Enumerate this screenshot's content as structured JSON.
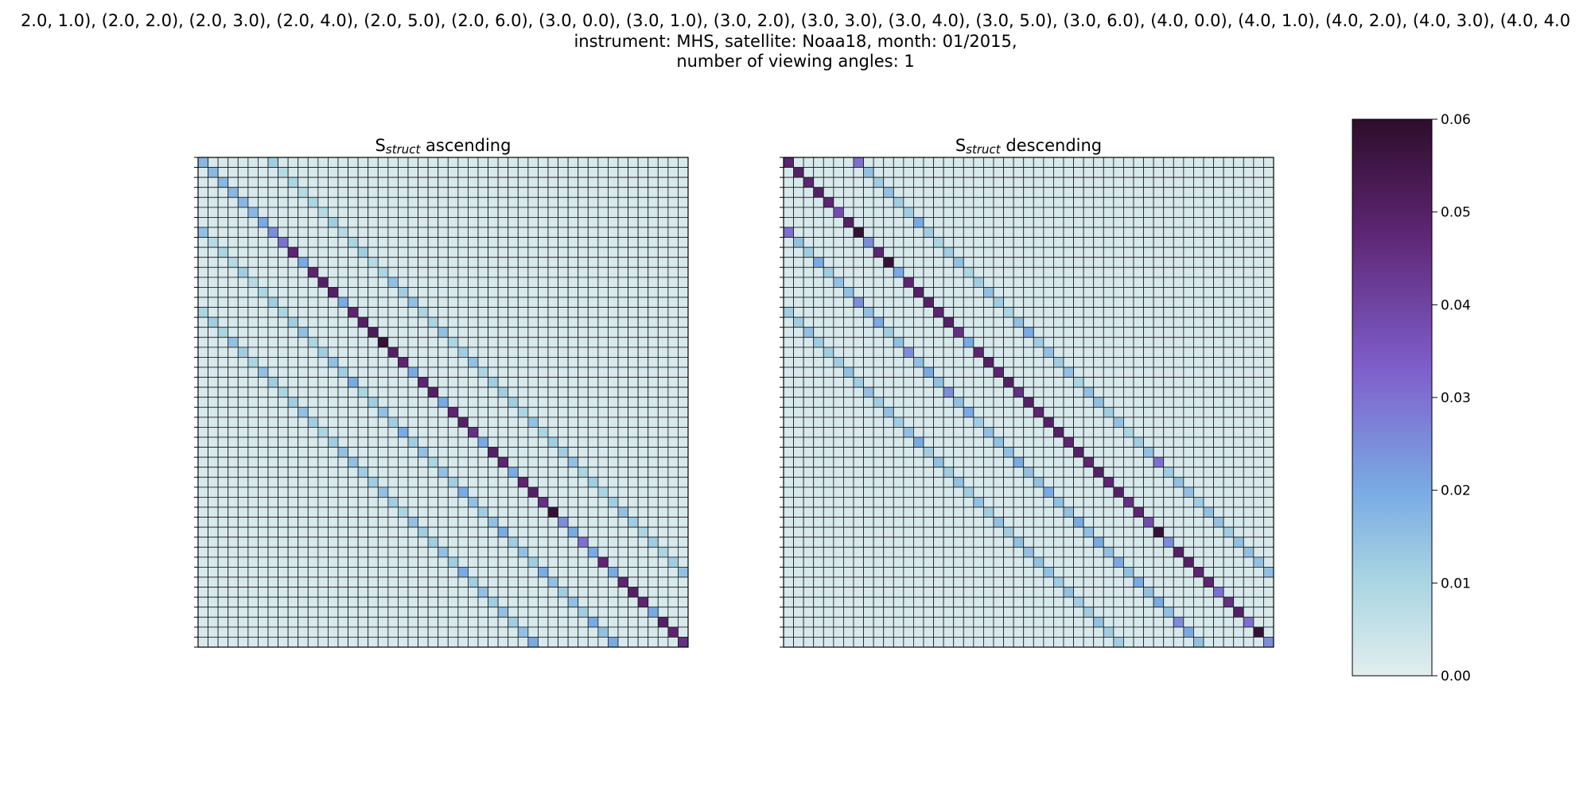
{
  "figure": {
    "title_line_1": "2.0, 1.0), (2.0, 2.0), (2.0, 3.0), (2.0, 4.0), (2.0, 5.0), (2.0, 6.0), (3.0, 0.0), (3.0, 1.0), (3.0, 2.0), (3.0, 3.0), (3.0, 4.0), (3.0, 5.0), (3.0, 6.0), (4.0, 0.0), (4.0, 1.0), (4.0, 2.0), (4.0, 3.0), (4.0, 4.0",
    "title_line_2": "instrument: MHS, satellite: Noaa18, month: 01/2015,",
    "title_line_3": "number of viewing angles: 1"
  },
  "colormap": {
    "low": "#e2eeee",
    "light_blue": "#a9d5e2",
    "blue": "#7aabe4",
    "purple": "#7f5fcc",
    "magenta": "#5d2572",
    "high": "#2e0d2a"
  },
  "chart_data": [
    {
      "type": "heatmap",
      "title_main": "S",
      "title_sub": "struct",
      "title_rest": " ascending",
      "size": 49,
      "vmin": 0,
      "vmax": 0.06,
      "background_value": 0.002,
      "diagonals": [
        {
          "offset": 0,
          "values": [
            0.017,
            0.017,
            0.017,
            0.017,
            0.017,
            0.017,
            0.02,
            0.025,
            0.03,
            0.048,
            0.02,
            0.048,
            0.05,
            0.05,
            0.02,
            0.048,
            0.05,
            0.052,
            0.058,
            0.05,
            0.048,
            0.02,
            0.048,
            0.05,
            0.02,
            0.048,
            0.05,
            0.045,
            0.02,
            0.05,
            0.048,
            0.02,
            0.048,
            0.05,
            0.045,
            0.058,
            0.025,
            0.02,
            0.03,
            0.02,
            0.048,
            0.02,
            0.048,
            0.05,
            0.048,
            0.02,
            0.05,
            0.048,
            0.045
          ]
        },
        {
          "offset": 7,
          "values": [
            0.012,
            0.008,
            0.01,
            0.008,
            0.01,
            0.008,
            0.012,
            0.008,
            0.01,
            0.012,
            0.008,
            0.01,
            0.015,
            0.012,
            0.015,
            0.01,
            0.01,
            0.015,
            0.01,
            0.012,
            0.015,
            0.01,
            0.012,
            0.012,
            0.012,
            0.01,
            0.015,
            0.01,
            0.012,
            0.012,
            0.015,
            0.01,
            0.012,
            0.01,
            0.012,
            0.015,
            0.012,
            0.01,
            0.012,
            0.01,
            0.012,
            0.015
          ]
        },
        {
          "offset": -7,
          "values": [
            0.015,
            0.008,
            0.01,
            0.008,
            0.012,
            0.008,
            0.01,
            0.012,
            0.01,
            0.012,
            0.015,
            0.01,
            0.012,
            0.015,
            0.012,
            0.02,
            0.01,
            0.012,
            0.015,
            0.012,
            0.02,
            0.012,
            0.015,
            0.01,
            0.015,
            0.012,
            0.02,
            0.015,
            0.012,
            0.015,
            0.02,
            0.012,
            0.015,
            0.012,
            0.02,
            0.015,
            0.012,
            0.015,
            0.012,
            0.02,
            0.015,
            0.02
          ]
        },
        {
          "offset": -15,
          "values": [
            0.01,
            0.012,
            0.01,
            0.015,
            0.012,
            0.01,
            0.015,
            0.012,
            0.01,
            0.012,
            0.015,
            0.012,
            0.01,
            0.012,
            0.015,
            0.015,
            0.012,
            0.012,
            0.015,
            0.012,
            0.01,
            0.015,
            0.012,
            0.012,
            0.015,
            0.012,
            0.02,
            0.012,
            0.015,
            0.012,
            0.015,
            0.012,
            0.015,
            0.02
          ]
        }
      ]
    },
    {
      "type": "heatmap",
      "title_main": "S",
      "title_sub": "struct",
      "title_rest": " descending",
      "size": 49,
      "vmin": 0,
      "vmax": 0.06,
      "background_value": 0.002,
      "diagonals": [
        {
          "offset": 0,
          "values": [
            0.048,
            0.05,
            0.048,
            0.05,
            0.048,
            0.038,
            0.05,
            0.058,
            0.025,
            0.048,
            0.058,
            0.02,
            0.048,
            0.05,
            0.05,
            0.048,
            0.05,
            0.045,
            0.02,
            0.048,
            0.05,
            0.048,
            0.05,
            0.045,
            0.05,
            0.048,
            0.05,
            0.05,
            0.048,
            0.05,
            0.048,
            0.05,
            0.048,
            0.05,
            0.045,
            0.048,
            0.038,
            0.058,
            0.025,
            0.05,
            0.05,
            0.048,
            0.048,
            0.03,
            0.045,
            0.05,
            0.03,
            0.058,
            0.025
          ]
        },
        {
          "offset": 7,
          "values": [
            0.03,
            0.015,
            0.012,
            0.015,
            0.012,
            0.012,
            0.02,
            0.012,
            0.01,
            0.012,
            0.015,
            0.01,
            0.012,
            0.015,
            0.012,
            0.01,
            0.015,
            0.02,
            0.012,
            0.015,
            0.012,
            0.015,
            0.01,
            0.015,
            0.015,
            0.012,
            0.015,
            0.01,
            0.012,
            0.015,
            0.03,
            0.012,
            0.015,
            0.015,
            0.012,
            0.015,
            0.015,
            0.012,
            0.015,
            0.015,
            0.015,
            0.015
          ]
        },
        {
          "offset": -7,
          "values": [
            0.03,
            0.015,
            0.012,
            0.02,
            0.012,
            0.015,
            0.015,
            0.025,
            0.015,
            0.02,
            0.012,
            0.015,
            0.025,
            0.015,
            0.02,
            0.015,
            0.025,
            0.015,
            0.02,
            0.012,
            0.015,
            0.015,
            0.015,
            0.02,
            0.015,
            0.015,
            0.02,
            0.015,
            0.015,
            0.02,
            0.015,
            0.02,
            0.015,
            0.02,
            0.015,
            0.02,
            0.015,
            0.02,
            0.015,
            0.025,
            0.02,
            0.015
          ]
        },
        {
          "offset": -15,
          "values": [
            0.012,
            0.012,
            0.015,
            0.012,
            0.012,
            0.012,
            0.015,
            0.012,
            0.015,
            0.012,
            0.015,
            0.012,
            0.015,
            0.02,
            0.012,
            0.015,
            0.012,
            0.015,
            0.012,
            0.015,
            0.012,
            0.015,
            0.012,
            0.015,
            0.015,
            0.015,
            0.015,
            0.012,
            0.015,
            0.012,
            0.012,
            0.015,
            0.012,
            0.012
          ]
        }
      ]
    }
  ],
  "colorbar": {
    "vmin": 0,
    "vmax": 0.06,
    "ticks": [
      "0.00",
      "0.01",
      "0.02",
      "0.03",
      "0.04",
      "0.05",
      "0.06"
    ]
  }
}
